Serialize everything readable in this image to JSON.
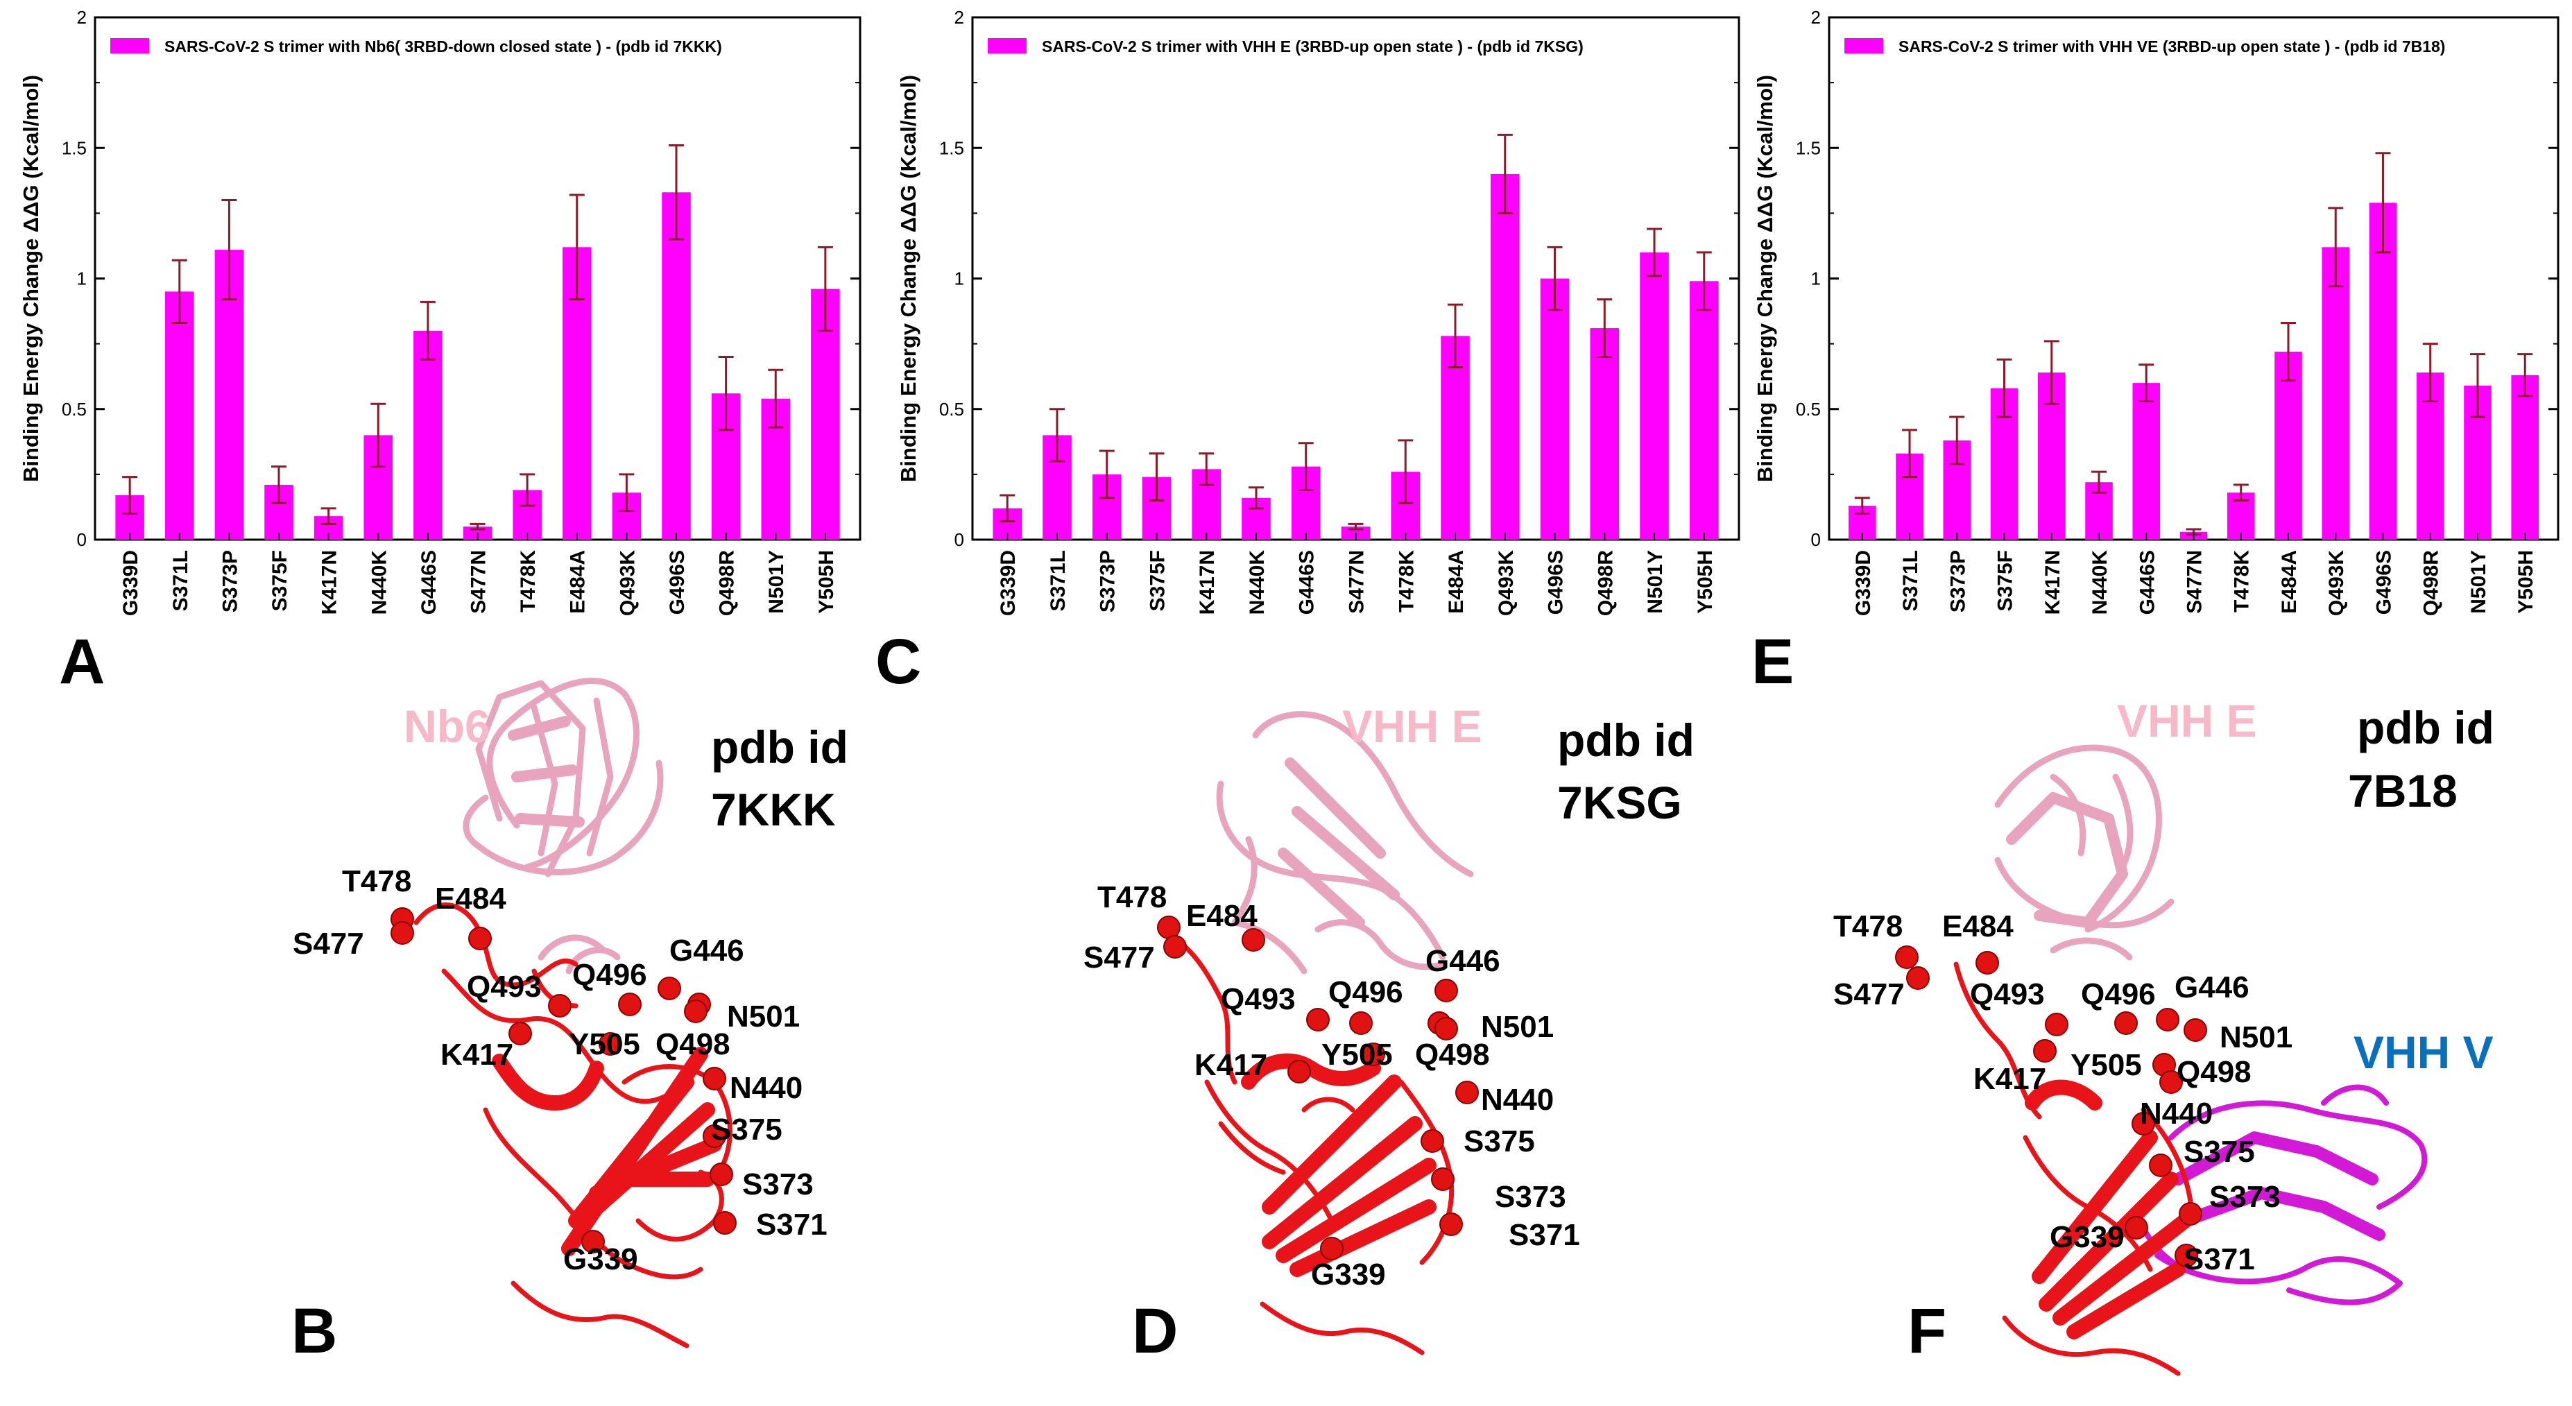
{
  "colors": {
    "bar": "#ff00ff",
    "error": "#8b1a2a",
    "ribbon_rbd": "#e8141a",
    "ribbon_nanobody": "#e9a4bd",
    "ribbon_vhhv": "#d21ad6",
    "label_pink": "#f7b9c9",
    "label_blue": "#0a6fbd"
  },
  "chart_data": [
    {
      "type": "bar",
      "panel": "A",
      "legend": "SARS-CoV-2  S trimer  with Nb6( 3RBD-down closed state ) - (pdb id 7KKK)",
      "ylabel": "Binding Energy Change ΔΔG (Kcal/mol)",
      "xlabel": "",
      "ylim": [
        0,
        2
      ],
      "yticks": [
        "0",
        "0.5",
        "1",
        "1.5",
        "2"
      ],
      "categories": [
        "G339D",
        "S371L",
        "S373P",
        "S375F",
        "K417N",
        "N440K",
        "G446S",
        "S477N",
        "T478K",
        "E484A",
        "Q493K",
        "G496S",
        "Q498R",
        "N501Y",
        "Y505H"
      ],
      "values": [
        0.17,
        0.95,
        1.11,
        0.21,
        0.09,
        0.4,
        0.8,
        0.05,
        0.19,
        1.12,
        0.18,
        1.33,
        0.56,
        0.54,
        0.96
      ],
      "errors": [
        0.07,
        0.12,
        0.19,
        0.07,
        0.03,
        0.12,
        0.11,
        0.01,
        0.06,
        0.2,
        0.07,
        0.18,
        0.14,
        0.11,
        0.16
      ]
    },
    {
      "type": "bar",
      "panel": "C",
      "legend": "SARS-CoV-2  S trimer  with VHH E (3RBD-up open state ) - (pdb id 7KSG)",
      "ylabel": "Binding Energy Change ΔΔG (Kcal/mol)",
      "xlabel": "",
      "ylim": [
        0,
        2
      ],
      "yticks": [
        "0",
        "0.5",
        "1",
        "1.5",
        "2"
      ],
      "categories": [
        "G339D",
        "S371L",
        "S373P",
        "S375F",
        "K417N",
        "N440K",
        "G446S",
        "S477N",
        "T478K",
        "E484A",
        "Q493K",
        "G496S",
        "Q498R",
        "N501Y",
        "Y505H"
      ],
      "values": [
        0.12,
        0.4,
        0.25,
        0.24,
        0.27,
        0.16,
        0.28,
        0.05,
        0.26,
        0.78,
        1.4,
        1.0,
        0.81,
        1.1,
        0.99
      ],
      "errors": [
        0.05,
        0.1,
        0.09,
        0.09,
        0.06,
        0.04,
        0.09,
        0.01,
        0.12,
        0.12,
        0.15,
        0.12,
        0.11,
        0.09,
        0.11
      ]
    },
    {
      "type": "bar",
      "panel": "E",
      "legend": "SARS-CoV-2  S trimer  with  VHH VE (3RBD-up  open state ) - (pdb id 7B18)",
      "ylabel": "Binding Energy Change ΔΔG (Kcal/mol)",
      "xlabel": "",
      "ylim": [
        0,
        2
      ],
      "yticks": [
        "0",
        "0.5",
        "1",
        "1.5",
        "2"
      ],
      "categories": [
        "G339D",
        "S371L",
        "S373P",
        "S375F",
        "K417N",
        "N440K",
        "G446S",
        "S477N",
        "T478K",
        "E484A",
        "Q493K",
        "G496S",
        "Q498R",
        "N501Y",
        "Y505H"
      ],
      "values": [
        0.13,
        0.33,
        0.38,
        0.58,
        0.64,
        0.22,
        0.6,
        0.03,
        0.18,
        0.72,
        1.12,
        1.29,
        0.64,
        0.59,
        0.63
      ],
      "errors": [
        0.03,
        0.09,
        0.09,
        0.11,
        0.12,
        0.04,
        0.07,
        0.01,
        0.03,
        0.11,
        0.15,
        0.19,
        0.11,
        0.12,
        0.08
      ]
    }
  ],
  "structures": [
    {
      "panel": "B",
      "pdb_line1": "pdb id",
      "pdb_line2": "7KKK",
      "chain_label": "Nb6",
      "residues": [
        "T478",
        "E484",
        "S477",
        "G446",
        "Q493",
        "Q496",
        "N501",
        "K417",
        "Y505",
        "Q498",
        "N440",
        "S375",
        "S373",
        "S371",
        "G339"
      ]
    },
    {
      "panel": "D",
      "pdb_line1": "pdb id",
      "pdb_line2": "7KSG",
      "chain_label": "VHH E",
      "residues": [
        "T478",
        "E484",
        "S477",
        "G446",
        "Q493",
        "Q496",
        "N501",
        "K417",
        "Y505",
        "Q498",
        "N440",
        "S375",
        "S373",
        "S371",
        "G339"
      ]
    },
    {
      "panel": "F",
      "pdb_line1": "pdb id",
      "pdb_line2": "7B18",
      "chain_label": "VHH E",
      "chain_label2": "VHH V",
      "residues": [
        "T478",
        "E484",
        "S477",
        "Q493",
        "Q496",
        "G446",
        "N501",
        "K417",
        "Y505",
        "Q498",
        "N440",
        "S375",
        "S373",
        "G339",
        "S371"
      ]
    }
  ]
}
